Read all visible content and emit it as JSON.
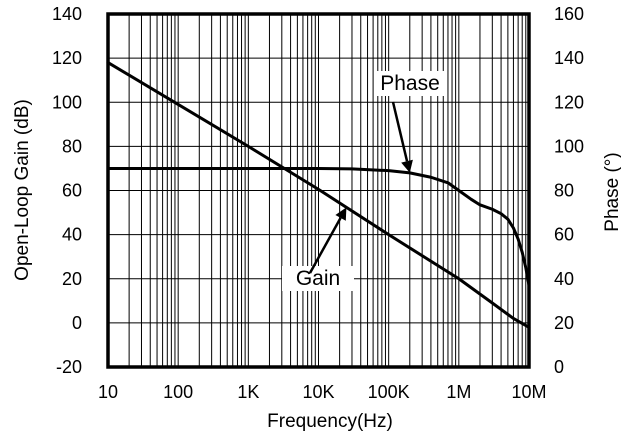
{
  "chart_data": {
    "type": "line",
    "title": "",
    "xlabel": "Frequency(Hz)",
    "ylabel_left": "Open-Loop Gain (dB)",
    "ylabel_right": "Phase (°)",
    "x_scale": "log",
    "xlim": [
      10,
      10000000
    ],
    "ylim_left": [
      -20,
      140
    ],
    "ylim_right": [
      0,
      160
    ],
    "grid": true,
    "x_ticks": [
      {
        "value": 10,
        "label": "10"
      },
      {
        "value": 100,
        "label": "100"
      },
      {
        "value": 1000,
        "label": "1K"
      },
      {
        "value": 10000,
        "label": "10K"
      },
      {
        "value": 100000,
        "label": "100K"
      },
      {
        "value": 1000000,
        "label": "1M"
      },
      {
        "value": 10000000,
        "label": "10M"
      }
    ],
    "y_ticks_left": [
      {
        "value": -20,
        "label": "-20"
      },
      {
        "value": 0,
        "label": "0"
      },
      {
        "value": 20,
        "label": "20"
      },
      {
        "value": 40,
        "label": "40"
      },
      {
        "value": 60,
        "label": "60"
      },
      {
        "value": 80,
        "label": "80"
      },
      {
        "value": 100,
        "label": "100"
      },
      {
        "value": 120,
        "label": "120"
      },
      {
        "value": 140,
        "label": "140"
      }
    ],
    "y_ticks_right": [
      {
        "value": 0,
        "label": "0"
      },
      {
        "value": 20,
        "label": "20"
      },
      {
        "value": 40,
        "label": "40"
      },
      {
        "value": 60,
        "label": "60"
      },
      {
        "value": 80,
        "label": "80"
      },
      {
        "value": 100,
        "label": "100"
      },
      {
        "value": 120,
        "label": "120"
      },
      {
        "value": 140,
        "label": "140"
      },
      {
        "value": 160,
        "label": "160"
      }
    ],
    "series": [
      {
        "name": "Gain",
        "axis": "left",
        "x": [
          10,
          100,
          1000,
          10000,
          100000,
          1000000,
          3000000,
          6000000,
          10000000
        ],
        "y": [
          118,
          99,
          80,
          60.5,
          40,
          20,
          9,
          2,
          -2
        ]
      },
      {
        "name": "Phase",
        "axis": "right",
        "x": [
          10,
          1000,
          10000,
          30000,
          100000,
          200000,
          400000,
          700000,
          1000000,
          1500000,
          2000000,
          3000000,
          4000000,
          5000000,
          6000000,
          7000000,
          8000000,
          9000000,
          10000000
        ],
        "y": [
          90,
          90,
          90,
          89.8,
          89,
          88,
          86,
          83.5,
          80,
          76,
          73.5,
          71.5,
          69.5,
          67,
          63,
          58,
          52,
          45,
          37
        ]
      }
    ],
    "annotations": [
      {
        "text": "Phase",
        "target_series": "Phase",
        "target_x": 200000
      },
      {
        "text": "Gain",
        "target_series": "Gain",
        "target_x": 25000
      }
    ],
    "colors": {
      "lines": "#000000",
      "grid": "#000000",
      "background": "#ffffff"
    }
  }
}
